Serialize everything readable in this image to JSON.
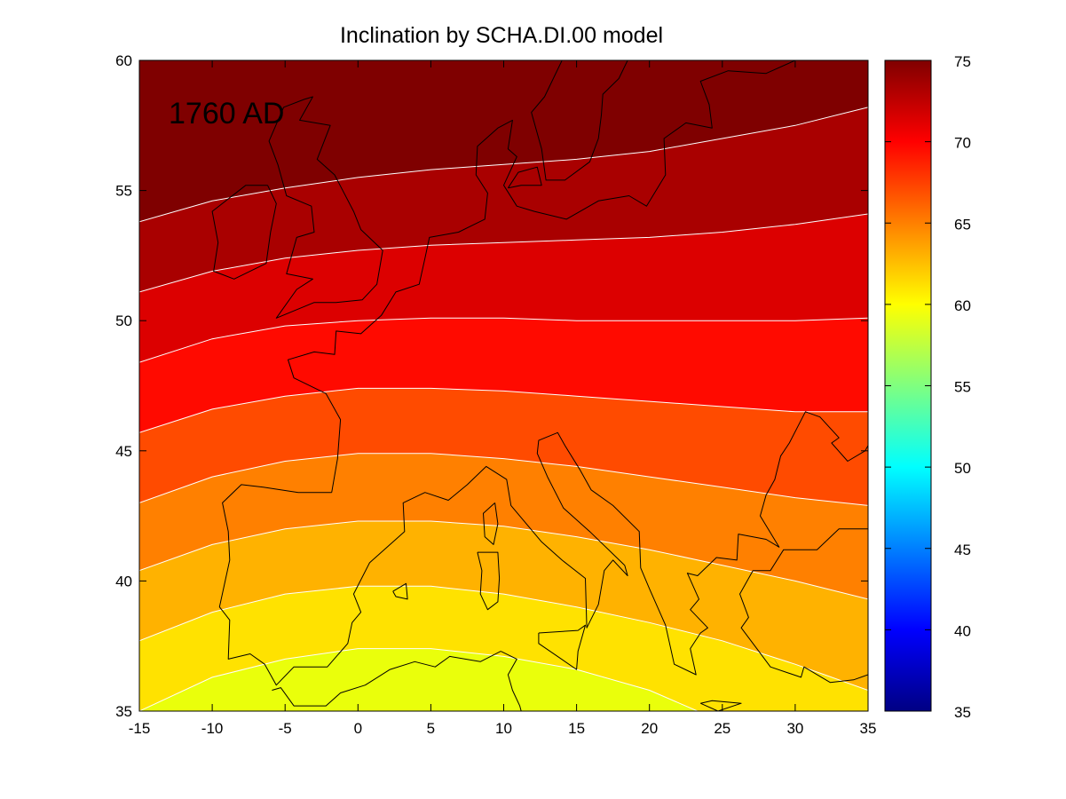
{
  "chart_data": {
    "type": "contour",
    "title": "Inclination by SCHA.DI.00 model",
    "annotation": "1760 AD",
    "xlabel": "",
    "ylabel": "",
    "xlim": [
      -15,
      35
    ],
    "ylim": [
      35,
      60
    ],
    "xticks": [
      -15,
      -10,
      -5,
      0,
      5,
      10,
      15,
      20,
      25,
      30,
      35
    ],
    "yticks": [
      35,
      40,
      45,
      50,
      55,
      60
    ],
    "colormap": "jet",
    "colorbar": {
      "range": [
        35,
        75
      ],
      "ticks": [
        35,
        40,
        45,
        50,
        55,
        60,
        65,
        70,
        75
      ]
    },
    "contour_levels": [
      58,
      60,
      62,
      64,
      66,
      68,
      70,
      72,
      74
    ],
    "contour_lines": [
      {
        "level": 74,
        "points": [
          [
            -15,
            53.8
          ],
          [
            -10,
            54.6
          ],
          [
            -5,
            55.1
          ],
          [
            0,
            55.5
          ],
          [
            5,
            55.8
          ],
          [
            10,
            56.0
          ],
          [
            15,
            56.2
          ],
          [
            20,
            56.5
          ],
          [
            25,
            57.0
          ],
          [
            30,
            57.5
          ],
          [
            35,
            58.2
          ]
        ]
      },
      {
        "level": 72,
        "points": [
          [
            -15,
            51.1
          ],
          [
            -10,
            51.9
          ],
          [
            -5,
            52.4
          ],
          [
            0,
            52.7
          ],
          [
            5,
            52.9
          ],
          [
            10,
            53.0
          ],
          [
            15,
            53.1
          ],
          [
            20,
            53.2
          ],
          [
            25,
            53.4
          ],
          [
            30,
            53.7
          ],
          [
            35,
            54.1
          ]
        ]
      },
      {
        "level": 70,
        "points": [
          [
            -15,
            48.4
          ],
          [
            -10,
            49.3
          ],
          [
            -5,
            49.8
          ],
          [
            0,
            50.0
          ],
          [
            5,
            50.1
          ],
          [
            10,
            50.1
          ],
          [
            15,
            50.0
          ],
          [
            20,
            50.0
          ],
          [
            25,
            50.0
          ],
          [
            30,
            50.0
          ],
          [
            35,
            50.1
          ]
        ]
      },
      {
        "level": 68,
        "points": [
          [
            -15,
            45.7
          ],
          [
            -10,
            46.6
          ],
          [
            -5,
            47.1
          ],
          [
            0,
            47.4
          ],
          [
            5,
            47.4
          ],
          [
            10,
            47.3
          ],
          [
            15,
            47.1
          ],
          [
            20,
            46.9
          ],
          [
            25,
            46.7
          ],
          [
            30,
            46.5
          ],
          [
            35,
            46.5
          ]
        ]
      },
      {
        "level": 66,
        "points": [
          [
            -15,
            43.0
          ],
          [
            -10,
            44.0
          ],
          [
            -5,
            44.6
          ],
          [
            0,
            44.9
          ],
          [
            5,
            44.9
          ],
          [
            10,
            44.7
          ],
          [
            15,
            44.4
          ],
          [
            20,
            44.0
          ],
          [
            25,
            43.6
          ],
          [
            30,
            43.2
          ],
          [
            35,
            42.9
          ]
        ]
      },
      {
        "level": 64,
        "points": [
          [
            -15,
            40.4
          ],
          [
            -10,
            41.4
          ],
          [
            -5,
            42.0
          ],
          [
            0,
            42.3
          ],
          [
            5,
            42.3
          ],
          [
            10,
            42.1
          ],
          [
            15,
            41.7
          ],
          [
            20,
            41.2
          ],
          [
            25,
            40.6
          ],
          [
            30,
            40.0
          ],
          [
            35,
            39.3
          ]
        ]
      },
      {
        "level": 62,
        "points": [
          [
            -15,
            37.7
          ],
          [
            -10,
            38.8
          ],
          [
            -5,
            39.5
          ],
          [
            0,
            39.8
          ],
          [
            5,
            39.8
          ],
          [
            10,
            39.5
          ],
          [
            15,
            39.0
          ],
          [
            20,
            38.4
          ],
          [
            25,
            37.7
          ],
          [
            30,
            36.8
          ],
          [
            35,
            35.8
          ]
        ]
      },
      {
        "level": 60,
        "points": [
          [
            -15,
            35.0
          ],
          [
            -10,
            36.3
          ],
          [
            -5,
            37.0
          ],
          [
            0,
            37.4
          ],
          [
            5,
            37.4
          ],
          [
            10,
            37.1
          ],
          [
            15,
            36.6
          ],
          [
            20,
            35.8
          ],
          [
            23.3,
            35.0
          ]
        ]
      }
    ],
    "band_colors": [
      {
        "min": 58,
        "max": 60,
        "color": "#eaff0b"
      },
      {
        "min": 60,
        "max": 62,
        "color": "#ffe200"
      },
      {
        "min": 62,
        "max": 64,
        "color": "#ffb200"
      },
      {
        "min": 64,
        "max": 66,
        "color": "#ff8000"
      },
      {
        "min": 66,
        "max": 68,
        "color": "#ff4b00"
      },
      {
        "min": 68,
        "max": 70,
        "color": "#ff0a00"
      },
      {
        "min": 70,
        "max": 72,
        "color": "#dc0000"
      },
      {
        "min": 72,
        "max": 74,
        "color": "#a90000"
      },
      {
        "min": 74,
        "max": 76,
        "color": "#7f0000"
      }
    ],
    "contour_line_color": "#ffffff",
    "coastline_color": "#000000",
    "coastlines": [
      [
        [
          -5.5,
          56.0
        ],
        [
          -6.1,
          56.9
        ],
        [
          -5.1,
          58.2
        ],
        [
          -3.7,
          58.5
        ],
        [
          -3.1,
          58.6
        ],
        [
          -4.0,
          57.7
        ],
        [
          -1.9,
          57.5
        ],
        [
          -2.8,
          56.2
        ],
        [
          -1.6,
          55.6
        ],
        [
          -0.3,
          54.2
        ],
        [
          0.2,
          53.5
        ],
        [
          1.7,
          52.7
        ],
        [
          1.3,
          51.4
        ],
        [
          0.3,
          50.8
        ],
        [
          -1.5,
          50.7
        ],
        [
          -3.0,
          50.7
        ],
        [
          -5.6,
          50.1
        ],
        [
          -4.2,
          51.2
        ],
        [
          -3.1,
          51.6
        ],
        [
          -4.9,
          51.8
        ],
        [
          -4.2,
          53.2
        ],
        [
          -3.0,
          53.4
        ],
        [
          -3.2,
          54.4
        ],
        [
          -4.9,
          54.8
        ],
        [
          -5.5,
          56.0
        ]
      ],
      [
        [
          -6.2,
          55.2
        ],
        [
          -7.7,
          55.2
        ],
        [
          -10.0,
          54.2
        ],
        [
          -9.6,
          53.0
        ],
        [
          -9.9,
          51.9
        ],
        [
          -8.5,
          51.6
        ],
        [
          -6.3,
          52.2
        ],
        [
          -6.0,
          53.4
        ],
        [
          -5.6,
          54.5
        ],
        [
          -6.2,
          55.2
        ]
      ],
      [
        [
          -1.8,
          43.4
        ],
        [
          -1.4,
          44.7
        ],
        [
          -1.2,
          46.2
        ],
        [
          -2.2,
          47.2
        ],
        [
          -4.4,
          47.8
        ],
        [
          -4.8,
          48.5
        ],
        [
          -3.0,
          48.8
        ],
        [
          -1.6,
          48.7
        ],
        [
          -1.5,
          49.6
        ],
        [
          0.2,
          49.5
        ],
        [
          1.6,
          50.2
        ],
        [
          2.6,
          51.1
        ],
        [
          4.2,
          51.4
        ],
        [
          4.6,
          52.4
        ],
        [
          4.9,
          53.2
        ],
        [
          6.9,
          53.4
        ],
        [
          8.7,
          53.9
        ],
        [
          8.9,
          54.9
        ],
        [
          8.1,
          55.6
        ],
        [
          8.2,
          56.7
        ],
        [
          9.6,
          57.4
        ],
        [
          10.6,
          57.7
        ],
        [
          10.3,
          56.6
        ],
        [
          10.9,
          56.3
        ],
        [
          10.0,
          55.2
        ],
        [
          10.9,
          54.4
        ],
        [
          12.1,
          54.2
        ],
        [
          14.3,
          53.9
        ],
        [
          16.5,
          54.6
        ],
        [
          18.6,
          54.8
        ],
        [
          19.8,
          54.4
        ],
        [
          21.1,
          55.6
        ],
        [
          21.0,
          57.0
        ],
        [
          22.5,
          57.6
        ],
        [
          24.3,
          57.4
        ],
        [
          24.1,
          58.3
        ],
        [
          23.5,
          59.2
        ],
        [
          25.4,
          59.6
        ],
        [
          28.0,
          59.5
        ],
        [
          30.0,
          60.0
        ]
      ],
      [
        [
          14.0,
          60.0
        ],
        [
          12.8,
          58.6
        ],
        [
          11.9,
          58.0
        ],
        [
          12.6,
          56.6
        ],
        [
          12.9,
          55.4
        ],
        [
          14.2,
          55.4
        ],
        [
          15.9,
          56.1
        ],
        [
          16.5,
          57.0
        ],
        [
          16.7,
          57.9
        ],
        [
          16.8,
          58.7
        ],
        [
          17.9,
          59.3
        ],
        [
          18.5,
          60.0
        ]
      ],
      [
        [
          -1.8,
          43.4
        ],
        [
          -4.1,
          43.4
        ],
        [
          -6.5,
          43.6
        ],
        [
          -8.0,
          43.7
        ],
        [
          -9.3,
          43.0
        ],
        [
          -8.9,
          41.9
        ],
        [
          -8.8,
          40.8
        ],
        [
          -9.5,
          39.0
        ],
        [
          -8.8,
          38.5
        ],
        [
          -8.9,
          37.0
        ],
        [
          -7.4,
          37.2
        ],
        [
          -6.4,
          36.8
        ],
        [
          -5.6,
          36.0
        ],
        [
          -4.4,
          36.7
        ],
        [
          -2.1,
          36.7
        ],
        [
          -0.7,
          37.6
        ],
        [
          -0.4,
          38.4
        ],
        [
          0.2,
          38.8
        ],
        [
          -0.3,
          39.5
        ],
        [
          0.8,
          40.7
        ],
        [
          3.2,
          41.9
        ],
        [
          3.1,
          43.0
        ],
        [
          4.6,
          43.4
        ],
        [
          6.2,
          43.1
        ],
        [
          7.5,
          43.7
        ],
        [
          8.8,
          44.4
        ],
        [
          10.2,
          43.9
        ],
        [
          10.5,
          42.9
        ],
        [
          12.6,
          41.5
        ],
        [
          14.0,
          40.8
        ],
        [
          15.6,
          40.1
        ],
        [
          15.7,
          38.2
        ],
        [
          16.5,
          39.1
        ],
        [
          16.9,
          40.4
        ],
        [
          17.5,
          40.8
        ],
        [
          18.5,
          40.2
        ],
        [
          18.3,
          40.6
        ],
        [
          15.9,
          41.9
        ],
        [
          14.1,
          42.8
        ],
        [
          13.0,
          44.0
        ],
        [
          12.3,
          44.9
        ],
        [
          12.4,
          45.4
        ],
        [
          13.7,
          45.7
        ],
        [
          14.2,
          45.2
        ],
        [
          15.2,
          44.3
        ],
        [
          16.0,
          43.5
        ],
        [
          17.5,
          42.9
        ],
        [
          19.3,
          41.9
        ],
        [
          19.4,
          40.5
        ],
        [
          20.0,
          39.7
        ],
        [
          21.1,
          38.3
        ],
        [
          21.7,
          36.8
        ],
        [
          23.2,
          36.4
        ],
        [
          22.8,
          37.4
        ],
        [
          23.5,
          38.0
        ],
        [
          24.0,
          38.2
        ],
        [
          22.8,
          38.9
        ],
        [
          23.4,
          39.3
        ],
        [
          22.6,
          40.3
        ],
        [
          23.3,
          40.2
        ],
        [
          24.6,
          40.9
        ],
        [
          26.0,
          40.8
        ],
        [
          26.1,
          41.8
        ],
        [
          28.0,
          41.6
        ],
        [
          28.9,
          41.3
        ],
        [
          27.6,
          42.5
        ],
        [
          28.0,
          43.3
        ],
        [
          28.6,
          43.9
        ],
        [
          29.0,
          44.8
        ],
        [
          29.6,
          45.3
        ],
        [
          30.7,
          46.5
        ],
        [
          31.7,
          46.3
        ],
        [
          33.0,
          45.5
        ],
        [
          32.5,
          45.3
        ],
        [
          33.6,
          44.6
        ],
        [
          34.8,
          45.0
        ],
        [
          35.0,
          45.2
        ]
      ],
      [
        [
          35.0,
          42.0
        ],
        [
          34.0,
          42.0
        ],
        [
          33.0,
          42.0
        ],
        [
          31.5,
          41.2
        ],
        [
          29.2,
          41.2
        ],
        [
          28.3,
          40.4
        ],
        [
          27.1,
          40.4
        ],
        [
          26.2,
          39.5
        ],
        [
          26.8,
          38.6
        ],
        [
          26.3,
          38.2
        ],
        [
          27.5,
          37.3
        ],
        [
          28.3,
          36.7
        ],
        [
          30.4,
          36.3
        ],
        [
          30.6,
          36.7
        ],
        [
          32.4,
          36.1
        ],
        [
          34.0,
          36.2
        ],
        [
          35.0,
          36.4
        ]
      ],
      [
        [
          9.8,
          37.3
        ],
        [
          10.9,
          37.0
        ],
        [
          10.3,
          36.4
        ],
        [
          10.6,
          35.8
        ],
        [
          11.1,
          35.2
        ],
        [
          11.2,
          35.0
        ]
      ],
      [
        [
          -5.9,
          35.8
        ],
        [
          -5.3,
          35.9
        ],
        [
          -4.4,
          35.2
        ],
        [
          -2.2,
          35.2
        ],
        [
          -1.2,
          35.7
        ],
        [
          0.5,
          36.0
        ],
        [
          2.2,
          36.6
        ],
        [
          3.9,
          36.9
        ],
        [
          5.3,
          36.7
        ],
        [
          6.3,
          37.1
        ],
        [
          8.4,
          36.9
        ],
        [
          9.8,
          37.3
        ]
      ],
      [
        [
          8.2,
          41.1
        ],
        [
          9.6,
          41.1
        ],
        [
          9.7,
          40.1
        ],
        [
          9.6,
          39.2
        ],
        [
          8.9,
          38.9
        ],
        [
          8.4,
          39.5
        ],
        [
          8.5,
          40.4
        ],
        [
          8.2,
          41.1
        ]
      ],
      [
        [
          9.4,
          43.0
        ],
        [
          9.6,
          42.2
        ],
        [
          9.3,
          41.4
        ],
        [
          8.7,
          41.7
        ],
        [
          8.6,
          42.6
        ],
        [
          9.4,
          43.0
        ]
      ],
      [
        [
          12.4,
          38.0
        ],
        [
          15.1,
          38.1
        ],
        [
          15.6,
          38.3
        ],
        [
          15.1,
          37.3
        ],
        [
          15.0,
          36.6
        ],
        [
          12.4,
          37.6
        ],
        [
          12.4,
          38.0
        ]
      ],
      [
        [
          2.4,
          39.6
        ],
        [
          3.3,
          39.9
        ],
        [
          3.4,
          39.3
        ],
        [
          2.6,
          39.4
        ],
        [
          2.4,
          39.6
        ]
      ],
      [
        [
          23.5,
          35.3
        ],
        [
          24.3,
          35.4
        ],
        [
          26.3,
          35.3
        ],
        [
          24.7,
          35.0
        ],
        [
          23.5,
          35.3
        ]
      ],
      [
        [
          10.3,
          55.1
        ],
        [
          11.0,
          55.7
        ],
        [
          12.3,
          55.9
        ],
        [
          12.6,
          55.2
        ],
        [
          11.2,
          55.2
        ],
        [
          10.3,
          55.1
        ]
      ]
    ]
  }
}
